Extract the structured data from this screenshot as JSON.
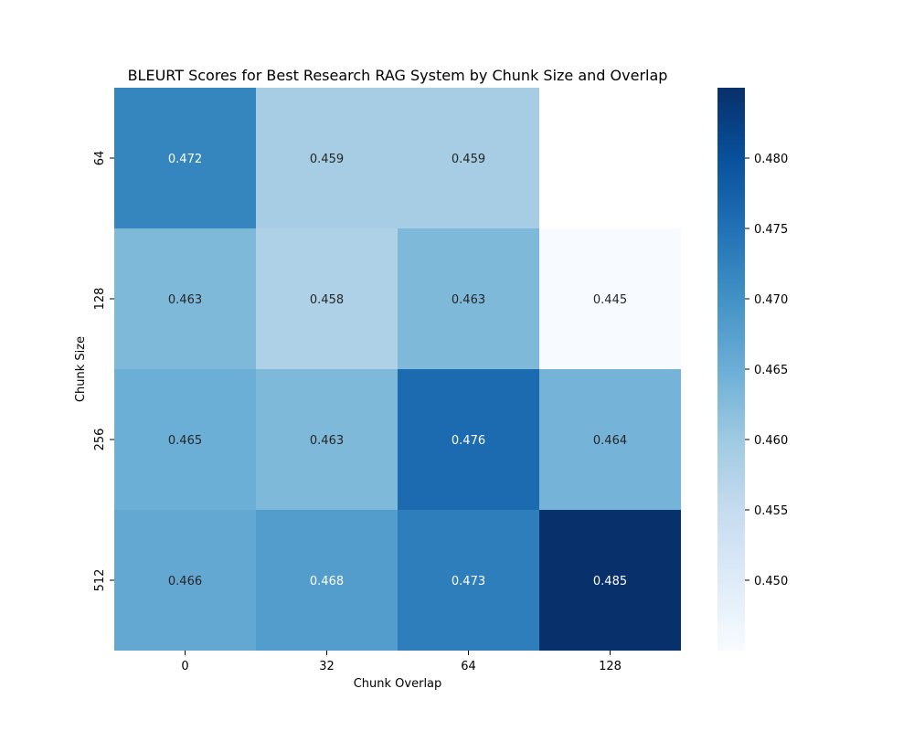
{
  "chart_data": {
    "type": "heatmap",
    "title": "BLEURT Scores for Best Research RAG System by Chunk Size and Overlap",
    "xlabel": "Chunk Overlap",
    "ylabel": "Chunk Size",
    "x_categories": [
      "0",
      "32",
      "64",
      "128"
    ],
    "y_categories": [
      "64",
      "128",
      "256",
      "512"
    ],
    "values": [
      [
        0.472,
        0.459,
        0.459,
        null
      ],
      [
        0.463,
        0.458,
        0.463,
        0.445
      ],
      [
        0.465,
        0.463,
        0.476,
        0.464
      ],
      [
        0.466,
        0.468,
        0.473,
        0.485
      ]
    ],
    "value_labels": [
      [
        "0.472",
        "0.459",
        "0.459",
        ""
      ],
      [
        "0.463",
        "0.458",
        "0.463",
        "0.445"
      ],
      [
        "0.465",
        "0.463",
        "0.476",
        "0.464"
      ],
      [
        "0.466",
        "0.468",
        "0.473",
        "0.485"
      ]
    ],
    "colormap": "Blues",
    "vmin": 0.445,
    "vmax": 0.485,
    "colorbar_ticks": [
      "0.450",
      "0.455",
      "0.460",
      "0.465",
      "0.470",
      "0.475",
      "0.480"
    ],
    "colorbar_tick_values": [
      0.45,
      0.455,
      0.46,
      0.465,
      0.47,
      0.475,
      0.48
    ],
    "colors": {
      "low": "#f7fbff",
      "high": "#08306b",
      "text_dark": "#262626",
      "text_light": "#ffffff"
    }
  }
}
